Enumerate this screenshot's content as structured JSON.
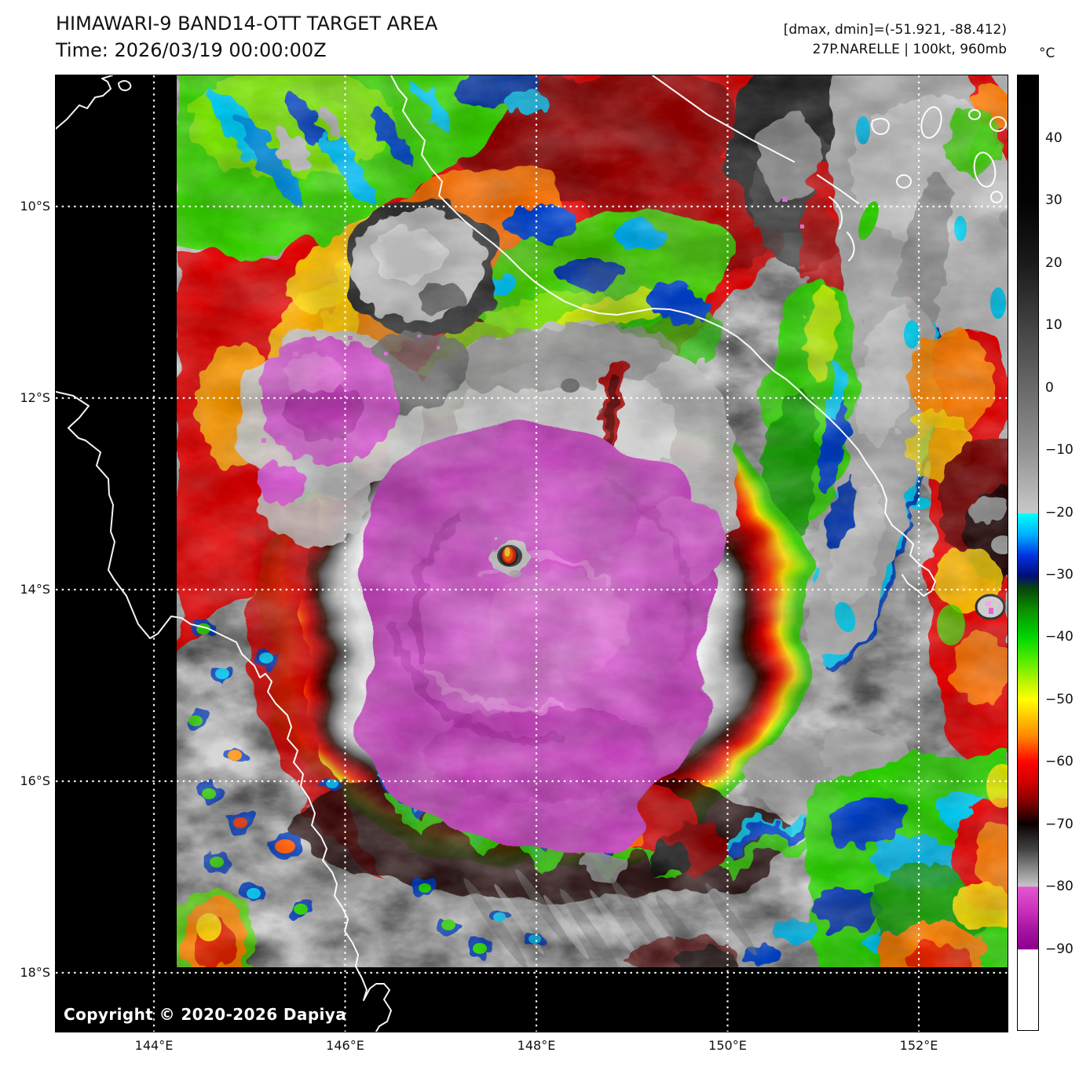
{
  "header": {
    "title": "HIMAWARI-9 BAND14-OTT TARGET AREA",
    "time_label": "Time: 2026/03/19 00:00:00Z",
    "dmax_dmin": "[dmax, dmin]=(-51.921, -88.412)",
    "storm_info": "27P.NARELLE | 100kt, 960mb"
  },
  "map": {
    "copyright": "Copyright © 2020-2026 Dapiya",
    "lat_ticks": [
      "10°S",
      "12°S",
      "14°S",
      "16°S",
      "18°S"
    ],
    "lon_ticks": [
      "144°E",
      "146°E",
      "148°E",
      "150°E",
      "152°E"
    ]
  },
  "colorbar": {
    "unit": "°C",
    "tick_labels": [
      "40",
      "30",
      "20",
      "10",
      "0",
      "−10",
      "−20",
      "−30",
      "−40",
      "−50",
      "−60",
      "−70",
      "−80",
      "−90"
    ],
    "tick_values": [
      40,
      30,
      20,
      10,
      0,
      -10,
      -20,
      -30,
      -40,
      -50,
      -60,
      -70,
      -80,
      -90
    ],
    "palette": [
      {
        "temp_c": 45,
        "color": "#000000"
      },
      {
        "temp_c": 20,
        "color": "#1b1b1b"
      },
      {
        "temp_c": 0,
        "color": "#696969"
      },
      {
        "temp_c": -10,
        "color": "#929292"
      },
      {
        "temp_c": -19.9,
        "color": "#c8c8c8"
      },
      {
        "temp_c": -20,
        "color": "#00ffff"
      },
      {
        "temp_c": -30,
        "color": "#000d78"
      },
      {
        "temp_c": -40,
        "color": "#00d800"
      },
      {
        "temp_c": -50,
        "color": "#ffff00"
      },
      {
        "temp_c": -60,
        "color": "#ff0400"
      },
      {
        "temp_c": -70,
        "color": "#0a0000"
      },
      {
        "temp_c": -79.9,
        "color": "#c4c4c4"
      },
      {
        "temp_c": -80,
        "color": "#e157d2"
      },
      {
        "temp_c": -90,
        "color": "#8c008c"
      },
      {
        "temp_c": -91,
        "color": "#ffffff"
      }
    ]
  },
  "colors": {
    "cdo_magenta": "#d45ace",
    "eye_hotspot_red": "#e01800",
    "eye_hotspot_yellow": "#ffd820",
    "coastline": "#ffffff",
    "grid": "#ffffff",
    "no_data": "#000000"
  }
}
